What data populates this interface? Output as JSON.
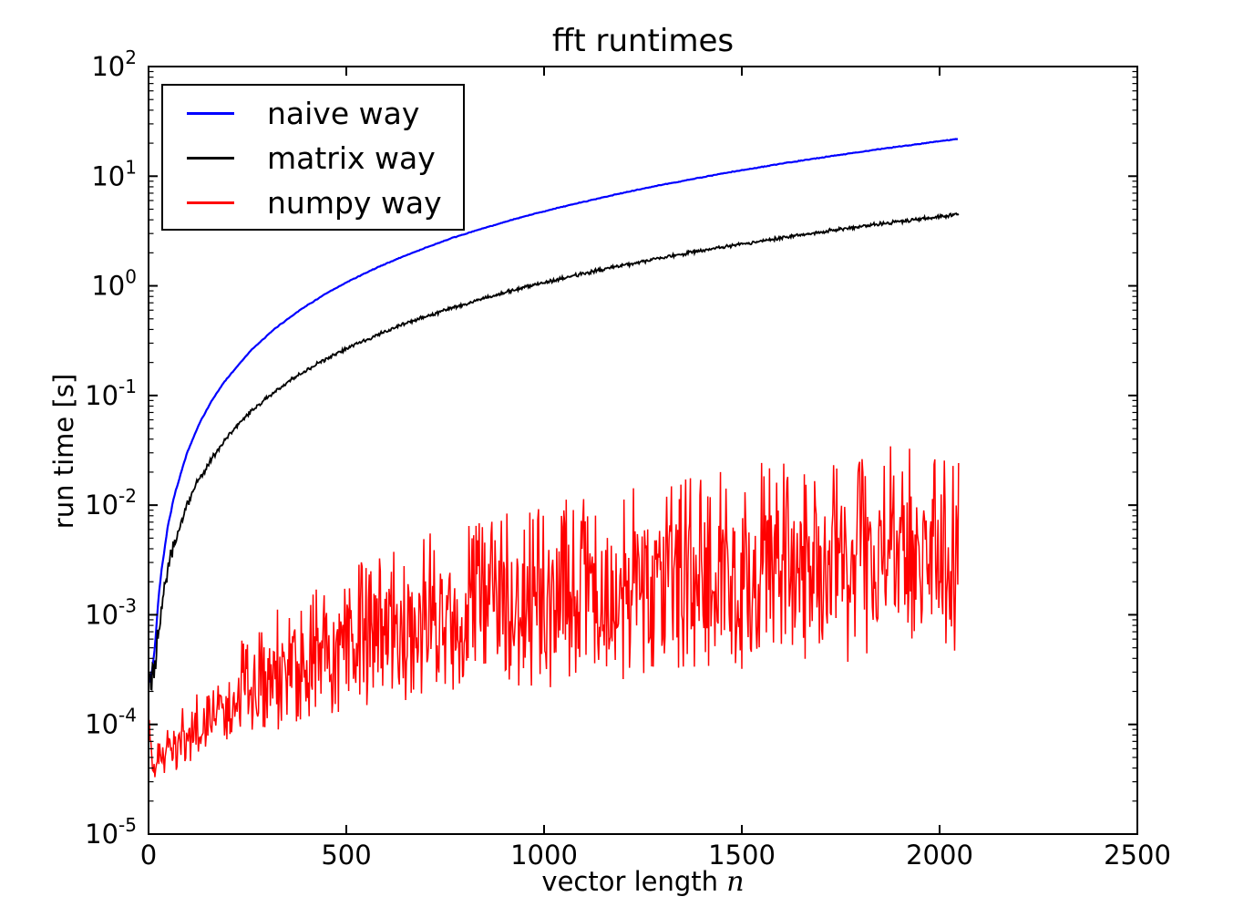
{
  "chart_data": {
    "type": "line",
    "title": "fft runtimes",
    "xlabel": "vector length",
    "xlabel_math": "n",
    "ylabel": "run time [s]",
    "x_scale": "linear",
    "y_scale": "log",
    "xlim": [
      0,
      2500
    ],
    "ylim": [
      1e-05,
      100
    ],
    "x_ticks": [
      0,
      500,
      1000,
      1500,
      2000,
      2500
    ],
    "y_tick_exponents": [
      2,
      1,
      0,
      -1,
      -2,
      -3,
      -4,
      -5
    ],
    "grid": false,
    "legend_position": "upper left",
    "background_color": "#ffffff",
    "axis_color": "#000000",
    "noise": {
      "seed": 42,
      "step_n": 2
    },
    "series": [
      {
        "name": "naive way",
        "color": "#0000ff",
        "style": "line",
        "x": [
          3,
          8,
          16,
          24,
          32,
          48,
          64,
          96,
          128,
          160,
          192,
          256,
          320,
          384,
          448,
          512,
          576,
          640,
          704,
          768,
          832,
          896,
          960,
          1024,
          1088,
          1152,
          1216,
          1280,
          1344,
          1408,
          1472,
          1536,
          1600,
          1664,
          1728,
          1792,
          1856,
          1920,
          1984,
          2048
        ],
        "y": [
          0.00024,
          0.0003,
          0.00049,
          0.00127,
          0.00246,
          0.0062,
          0.0118,
          0.0291,
          0.055,
          0.09,
          0.134,
          0.252,
          0.409,
          0.607,
          0.846,
          1.13,
          1.46,
          1.83,
          2.25,
          2.73,
          3.23,
          3.78,
          4.39,
          5.03,
          5.7,
          6.45,
          7.25,
          8.1,
          8.95,
          9.9,
          10.9,
          11.9,
          13.0,
          14.1,
          15.3,
          16.5,
          17.8,
          19.1,
          20.5,
          21.9
        ]
      },
      {
        "name": "matrix way",
        "color": "#000000",
        "style": "noisy-line",
        "x": [
          4,
          8,
          16,
          32,
          48,
          64,
          96,
          128,
          192,
          256,
          320,
          384,
          448,
          512,
          576,
          640,
          704,
          768,
          832,
          896,
          960,
          1024,
          1088,
          1152,
          1216,
          1280,
          1344,
          1408,
          1472,
          1536,
          1600,
          1664,
          1728,
          1792,
          1856,
          1920,
          1984,
          2048
        ],
        "y": [
          0.00022,
          0.00024,
          0.00035,
          0.00115,
          0.0025,
          0.0044,
          0.0099,
          0.0175,
          0.0394,
          0.07,
          0.11,
          0.158,
          0.215,
          0.28,
          0.355,
          0.438,
          0.53,
          0.63,
          0.74,
          0.86,
          0.99,
          1.12,
          1.27,
          1.42,
          1.58,
          1.75,
          1.93,
          2.12,
          2.32,
          2.52,
          2.74,
          2.96,
          3.2,
          3.44,
          3.69,
          3.94,
          4.21,
          4.49
        ]
      },
      {
        "name": "numpy way",
        "color": "#ff0000",
        "style": "noisy-band",
        "x": [
          2,
          16,
          32,
          64,
          100,
          150,
          200,
          300,
          400,
          500,
          700,
          900,
          1100,
          1300,
          1500,
          1700,
          1900,
          2048
        ],
        "y_lower": [
          3e-05,
          3.2e-05,
          3.3e-05,
          3.6e-05,
          4.2e-05,
          5.5e-05,
          6.5e-05,
          8.5e-05,
          0.0001,
          0.00012,
          0.000155,
          0.00019,
          0.00023,
          0.00027,
          0.00031,
          0.00035,
          0.0004,
          0.00044
        ],
        "y_upper": [
          0.00011,
          6e-05,
          8e-05,
          0.00012,
          0.00017,
          0.00027,
          0.00045,
          0.001,
          0.0017,
          0.0027,
          0.0054,
          0.0086,
          0.0125,
          0.0175,
          0.023,
          0.03,
          0.037,
          0.042
        ]
      }
    ]
  }
}
